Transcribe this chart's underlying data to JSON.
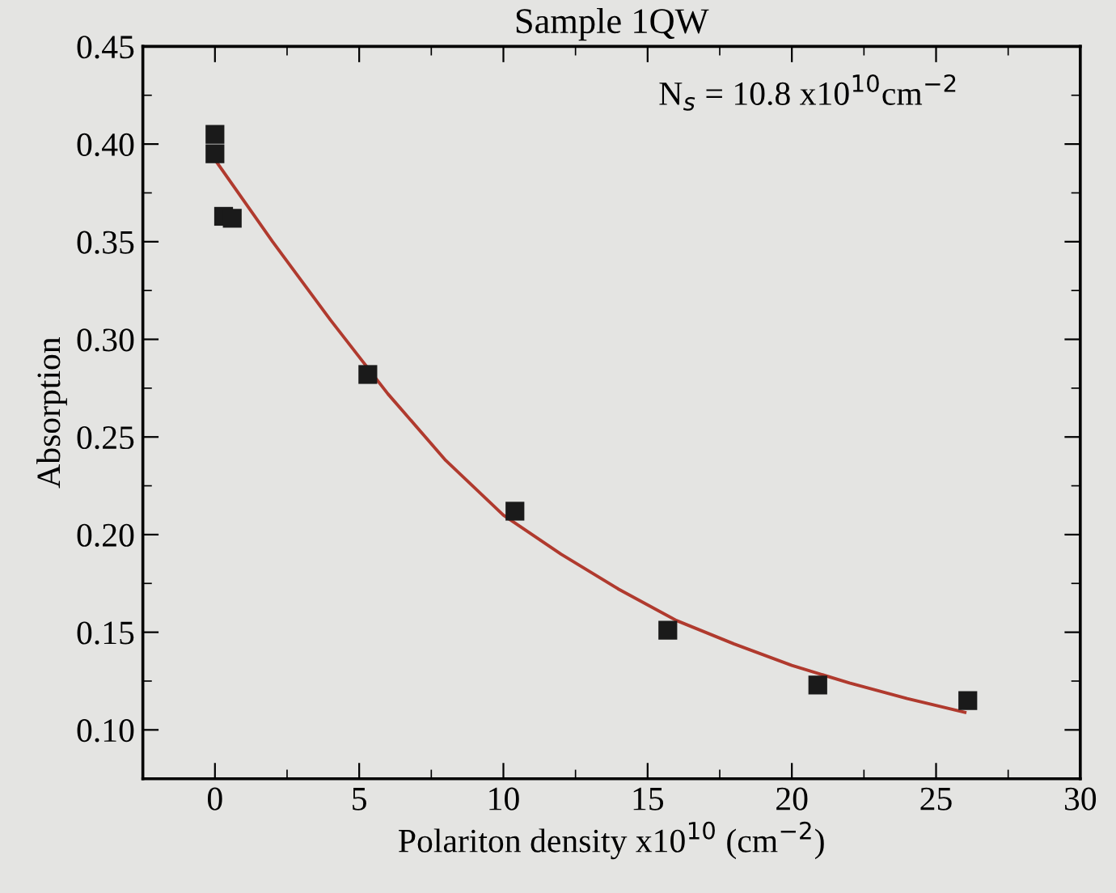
{
  "chart_data": {
    "type": "scatter",
    "title": "Sample 1QW",
    "xlabel": "Polariton density x10$^{10}$ (cm$^{−2}$)",
    "ylabel": "Absorption",
    "annotations": [
      "N$_{s}$ = 10.8 x10$^{10}$cm$^{−2}$"
    ],
    "xlim": [
      -2.5,
      30
    ],
    "xticks": [
      0,
      5,
      10,
      15,
      20,
      25,
      30
    ],
    "ylim": [
      0.075,
      0.45
    ],
    "yticks": [
      {
        "value": 0.1,
        "label": "0.10"
      },
      {
        "value": 0.15,
        "label": "0.15"
      },
      {
        "value": 0.2,
        "label": "0.20"
      },
      {
        "value": 0.25,
        "label": "0.25"
      },
      {
        "value": 0.3,
        "label": "0.30"
      },
      {
        "value": 0.35,
        "label": "0.35"
      },
      {
        "value": 0.4,
        "label": "0.40"
      },
      {
        "value": 0.45,
        "label": "0.45"
      }
    ],
    "grid": false,
    "legend": false,
    "series": [
      {
        "type": "line",
        "color": "#b03a2e",
        "line_style": "solid",
        "marker": "none",
        "x": [
          0,
          2,
          4,
          6,
          8,
          10,
          12,
          14,
          16,
          18,
          20,
          22,
          24,
          26
        ],
        "values": [
          0.392,
          0.35,
          0.31,
          0.272,
          0.238,
          0.21,
          0.19,
          0.172,
          0.156,
          0.144,
          0.133,
          0.124,
          0.116,
          0.109
        ]
      },
      {
        "color": "#1a1a1a",
        "marker": "square",
        "x": [
          0,
          0,
          0.3,
          0.6,
          5.3,
          10.4,
          15.7,
          20.9,
          26.1
        ],
        "values": [
          0.405,
          0.395,
          0.363,
          0.362,
          0.282,
          0.212,
          0.151,
          0.123,
          0.115
        ]
      }
    ]
  }
}
